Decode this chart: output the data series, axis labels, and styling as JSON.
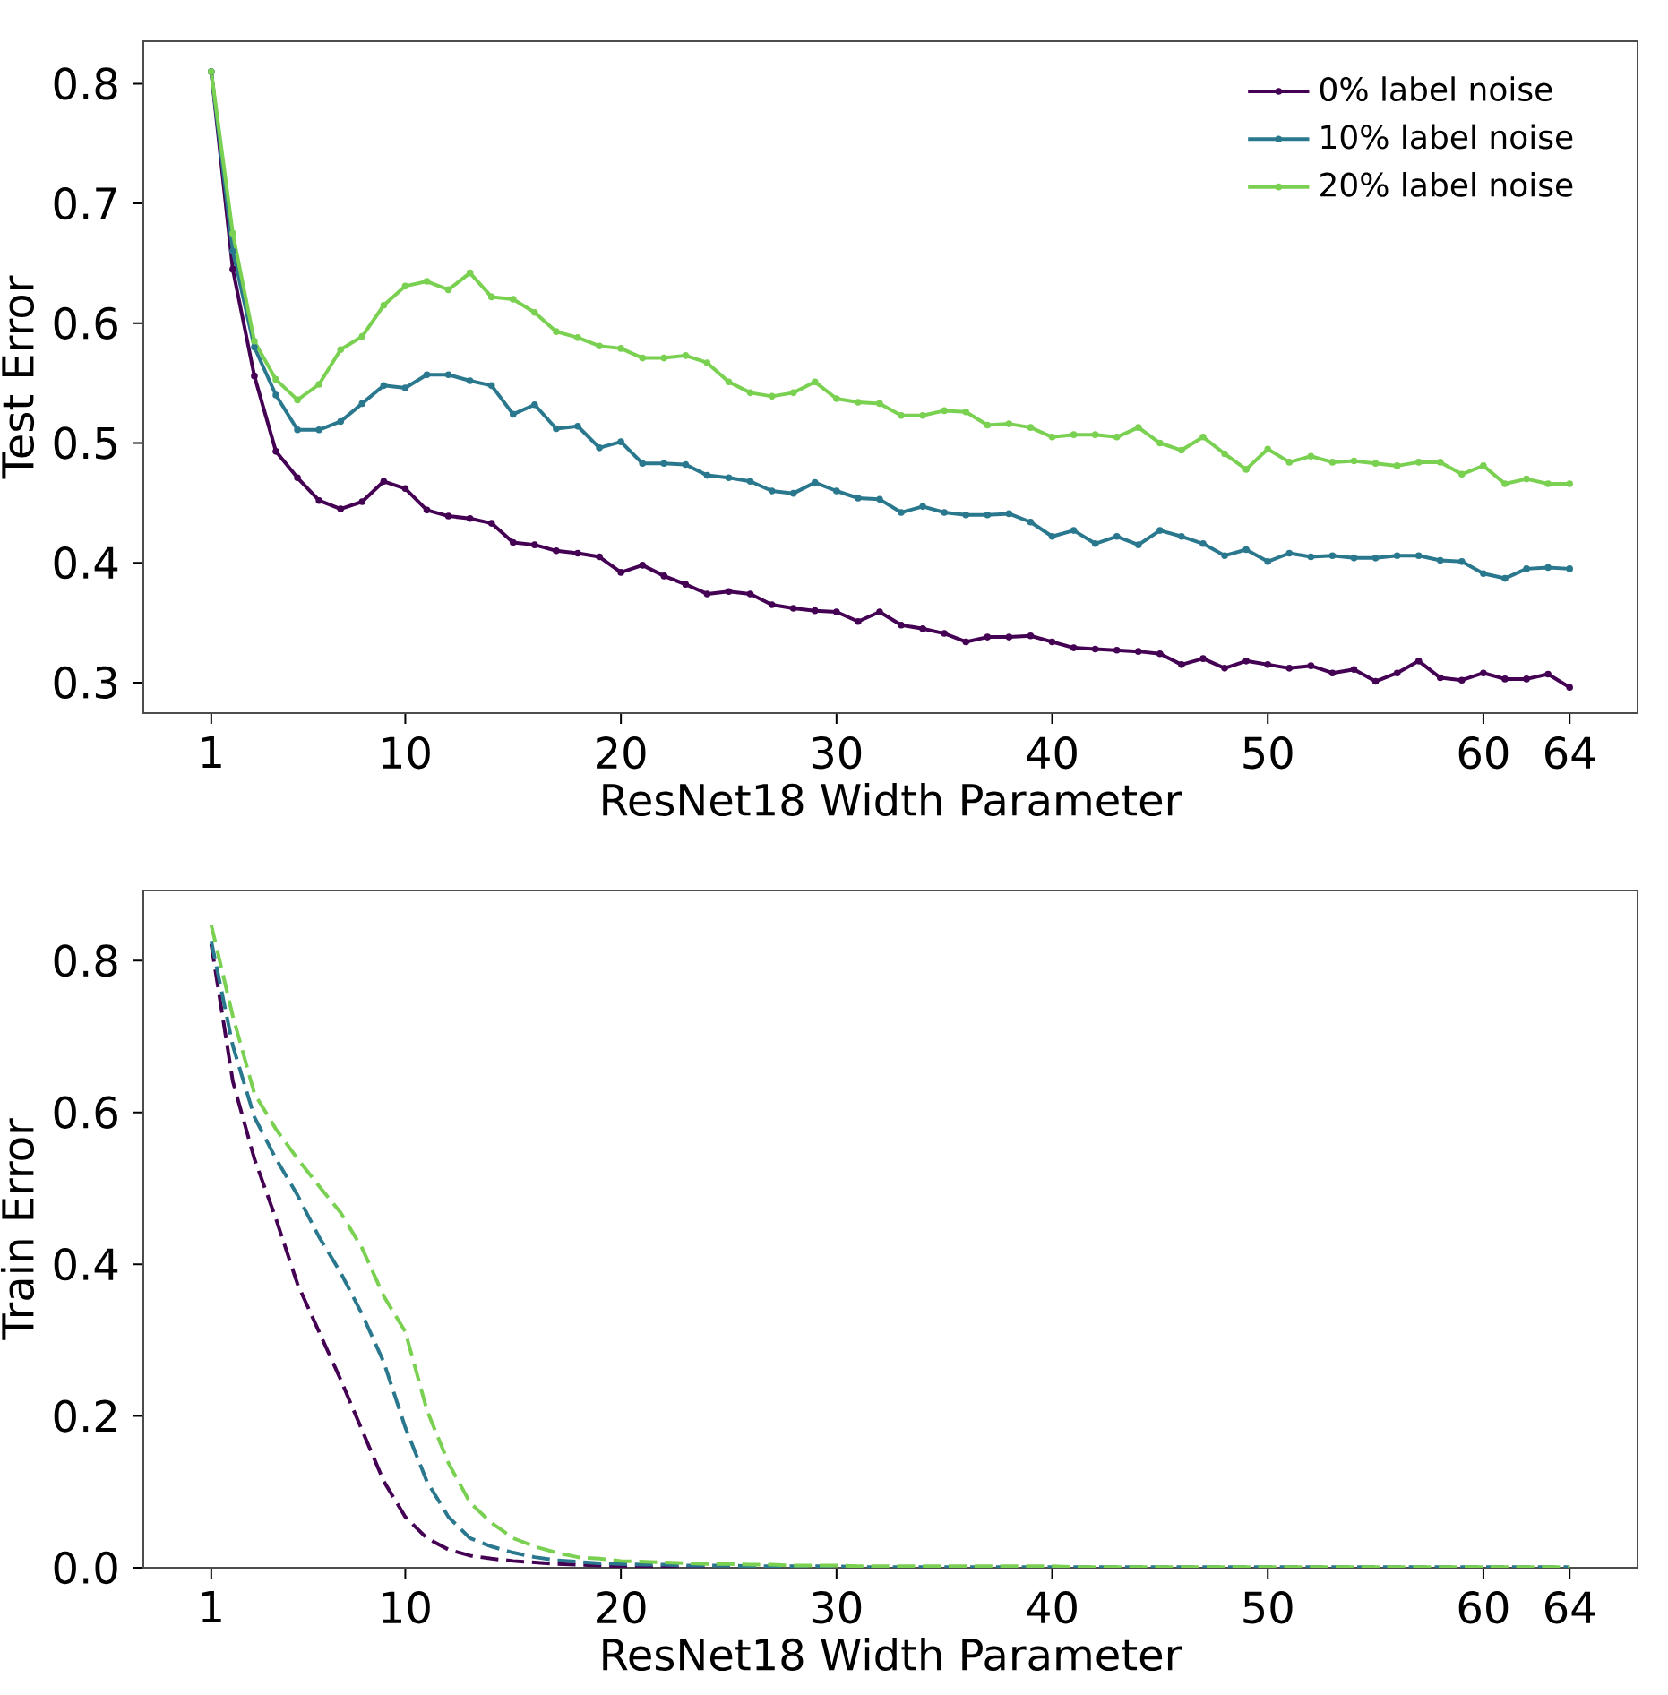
{
  "chart_data": [
    {
      "type": "line",
      "xlabel": "ResNet18 Width Parameter",
      "ylabel": "Test Error",
      "x": [
        1,
        2,
        3,
        4,
        5,
        6,
        7,
        8,
        9,
        10,
        11,
        12,
        13,
        14,
        15,
        16,
        17,
        18,
        19,
        20,
        21,
        22,
        23,
        24,
        25,
        26,
        27,
        28,
        29,
        30,
        31,
        32,
        33,
        34,
        35,
        36,
        37,
        38,
        39,
        40,
        41,
        42,
        43,
        44,
        45,
        46,
        47,
        48,
        49,
        50,
        51,
        52,
        53,
        54,
        55,
        56,
        57,
        58,
        59,
        60,
        61,
        62,
        63,
        64
      ],
      "xlim": [
        -2.15,
        67.15
      ],
      "xticks": [
        1,
        10,
        20,
        30,
        40,
        50,
        60,
        64
      ],
      "ylim": [
        0.2745,
        0.8355
      ],
      "yticks": [
        0.3,
        0.4,
        0.5,
        0.6,
        0.7,
        0.8
      ],
      "legend": "top right",
      "marker": "circle",
      "line_style": "solid",
      "series": [
        {
          "name": "0% label noise",
          "color": "#440154",
          "values": [
            0.81,
            0.645,
            0.556,
            0.493,
            0.471,
            0.452,
            0.445,
            0.451,
            0.468,
            0.462,
            0.444,
            0.439,
            0.437,
            0.433,
            0.417,
            0.415,
            0.41,
            0.408,
            0.405,
            0.392,
            0.398,
            0.389,
            0.382,
            0.374,
            0.376,
            0.374,
            0.365,
            0.362,
            0.36,
            0.359,
            0.351,
            0.359,
            0.348,
            0.345,
            0.341,
            0.334,
            0.338,
            0.338,
            0.339,
            0.334,
            0.329,
            0.328,
            0.327,
            0.326,
            0.324,
            0.315,
            0.32,
            0.312,
            0.318,
            0.315,
            0.312,
            0.314,
            0.308,
            0.311,
            0.301,
            0.308,
            0.318,
            0.304,
            0.302,
            0.308,
            0.303,
            0.303,
            0.307,
            0.296
          ]
        },
        {
          "name": "10% label noise",
          "color": "#2a788e",
          "values": [
            0.81,
            0.66,
            0.58,
            0.54,
            0.511,
            0.511,
            0.518,
            0.533,
            0.548,
            0.546,
            0.557,
            0.557,
            0.552,
            0.548,
            0.524,
            0.532,
            0.512,
            0.514,
            0.496,
            0.501,
            0.483,
            0.483,
            0.482,
            0.473,
            0.471,
            0.468,
            0.46,
            0.458,
            0.467,
            0.46,
            0.454,
            0.453,
            0.442,
            0.447,
            0.442,
            0.44,
            0.44,
            0.441,
            0.434,
            0.422,
            0.427,
            0.416,
            0.422,
            0.415,
            0.427,
            0.422,
            0.416,
            0.406,
            0.411,
            0.401,
            0.408,
            0.405,
            0.406,
            0.404,
            0.404,
            0.406,
            0.406,
            0.402,
            0.401,
            0.391,
            0.387,
            0.395,
            0.396,
            0.395
          ]
        },
        {
          "name": "20% label noise",
          "color": "#7ad151",
          "values": [
            0.81,
            0.675,
            0.585,
            0.553,
            0.536,
            0.549,
            0.578,
            0.589,
            0.615,
            0.631,
            0.635,
            0.628,
            0.642,
            0.622,
            0.62,
            0.609,
            0.593,
            0.588,
            0.581,
            0.579,
            0.571,
            0.571,
            0.573,
            0.567,
            0.551,
            0.542,
            0.539,
            0.542,
            0.551,
            0.537,
            0.534,
            0.533,
            0.523,
            0.523,
            0.527,
            0.526,
            0.515,
            0.516,
            0.513,
            0.505,
            0.507,
            0.507,
            0.505,
            0.513,
            0.5,
            0.494,
            0.505,
            0.491,
            0.478,
            0.495,
            0.484,
            0.489,
            0.484,
            0.485,
            0.483,
            0.481,
            0.484,
            0.484,
            0.474,
            0.481,
            0.466,
            0.47,
            0.466,
            0.466
          ]
        }
      ]
    },
    {
      "type": "line",
      "xlabel": "ResNet18 Width Parameter",
      "ylabel": "Train Error",
      "x": [
        1,
        2,
        3,
        4,
        5,
        6,
        7,
        8,
        9,
        10,
        11,
        12,
        13,
        14,
        15,
        16,
        17,
        18,
        19,
        20,
        21,
        22,
        23,
        24,
        25,
        26,
        27,
        28,
        29,
        30,
        31,
        32,
        33,
        34,
        35,
        36,
        37,
        38,
        39,
        40,
        41,
        42,
        43,
        44,
        45,
        46,
        47,
        48,
        49,
        50,
        51,
        52,
        53,
        54,
        55,
        56,
        57,
        58,
        59,
        60,
        61,
        62,
        63,
        64
      ],
      "xlim": [
        -2.15,
        67.15
      ],
      "xticks": [
        1,
        10,
        20,
        30,
        40,
        50,
        60,
        64
      ],
      "ylim": [
        0,
        0.8925
      ],
      "yticks": [
        {
          "value": 0,
          "label": "0.0"
        },
        0.2,
        0.4,
        0.6,
        0.8
      ],
      "line_style": "dashed",
      "series": [
        {
          "color": "#440154",
          "values": [
            0.822,
            0.641,
            0.539,
            0.46,
            0.374,
            0.311,
            0.248,
            0.181,
            0.114,
            0.067,
            0.039,
            0.024,
            0.016,
            0.012,
            0.009,
            0.007,
            0.005,
            0.004,
            0.003,
            0.002,
            0.001,
            0.001,
            0.001,
            0.001,
            null,
            null,
            null,
            null,
            null,
            null,
            null,
            null,
            null,
            null,
            null,
            null,
            null,
            null,
            null,
            null,
            null,
            null,
            null,
            null,
            null,
            null,
            null,
            null,
            null,
            null,
            null,
            null,
            null,
            null,
            null,
            null,
            null,
            null,
            null,
            null,
            null,
            null,
            null,
            null
          ]
        },
        {
          "color": "#2a788e",
          "values": [
            0.826,
            0.688,
            0.594,
            0.539,
            0.491,
            0.436,
            0.389,
            0.334,
            0.271,
            0.185,
            0.114,
            0.067,
            0.039,
            0.028,
            0.02,
            0.014,
            0.01,
            0.008,
            0.006,
            0.005,
            0.004,
            0.004,
            0.003,
            0.003,
            0.003,
            0.002,
            0.002,
            0.002,
            0.002,
            0.002,
            0.001,
            0.001,
            0.001,
            0.001,
            0.001,
            0.001,
            0.001,
            0.001,
            0.001,
            0.001,
            0.001,
            0.001,
            0.001,
            0.001,
            0.001,
            0.001,
            0.001,
            0.001,
            0.001,
            0.001,
            0.001,
            0.001,
            0.001,
            0.001,
            0.001,
            0.001,
            0.001,
            0.001,
            0.001,
            0.001,
            0.001,
            0.001,
            0.001,
            0.001
          ]
        },
        {
          "color": "#7ad151",
          "values": [
            0.847,
            0.727,
            0.625,
            0.578,
            0.539,
            0.503,
            0.468,
            0.421,
            0.358,
            0.311,
            0.208,
            0.138,
            0.086,
            0.059,
            0.039,
            0.028,
            0.02,
            0.014,
            0.012,
            0.009,
            0.008,
            0.007,
            0.006,
            0.005,
            0.005,
            0.004,
            0.004,
            0.003,
            0.003,
            0.003,
            0.002,
            0.002,
            0.002,
            0.002,
            0.002,
            0.002,
            0.002,
            0.002,
            0.002,
            0.002,
            0.001,
            0.001,
            0.001,
            0.001,
            0.001,
            0.001,
            0.001,
            0.001,
            0.001,
            0.001,
            0.001,
            0.001,
            0.001,
            0.001,
            0.001,
            0.001,
            0.001,
            0.001,
            0.001,
            0.001,
            0.001,
            0.001,
            0.001,
            0.001
          ]
        }
      ]
    }
  ]
}
